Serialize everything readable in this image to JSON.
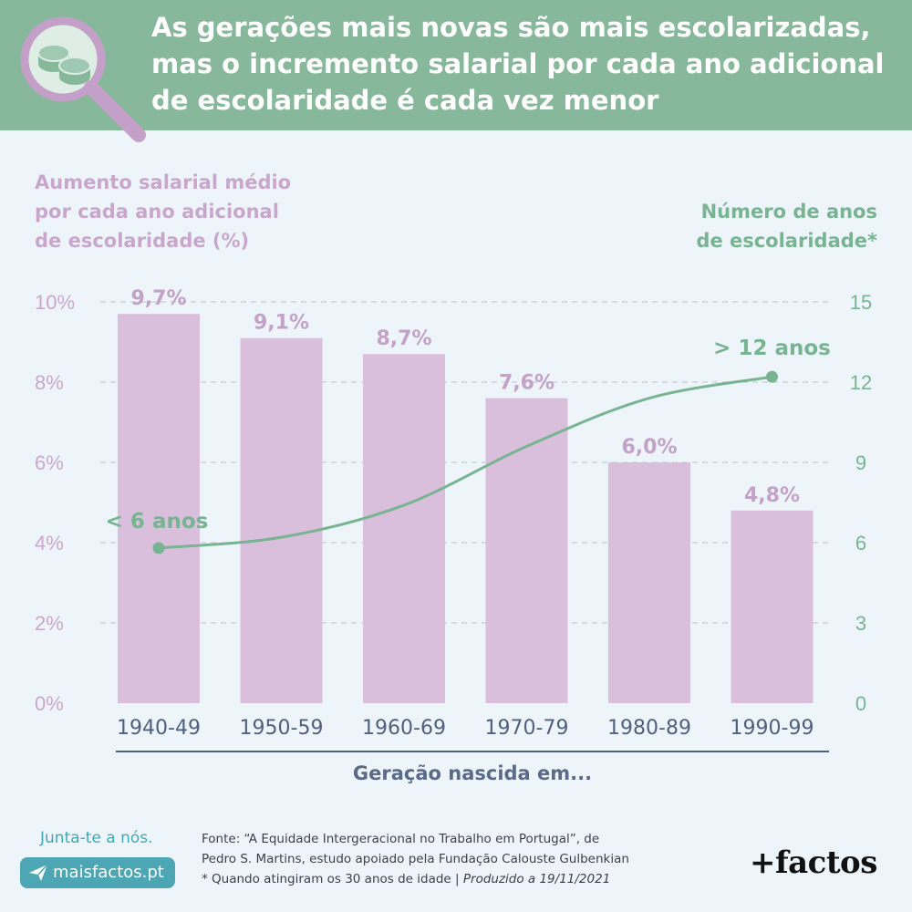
{
  "header": {
    "title_lines": [
      "As gerações mais novas são mais escolarizadas,",
      "mas o incremento salarial por cada ano adicional",
      "de escolaridade é cada vez menor"
    ],
    "icon": "magnifier-coins-icon",
    "color": "#88b89c"
  },
  "chart_data": {
    "type": "bar",
    "categories": [
      "1940-49",
      "1950-59",
      "1960-69",
      "1970-79",
      "1980-89",
      "1990-99"
    ],
    "series": [
      {
        "name": "Aumento salarial médio por cada ano adicional de escolaridade (%)",
        "type": "bar",
        "axis": "left",
        "values": [
          9.7,
          9.1,
          8.7,
          7.6,
          6.0,
          4.8
        ],
        "value_labels": [
          "9,7%",
          "9,1%",
          "8,7%",
          "7,6%",
          "6,0%",
          "4,8%"
        ],
        "color": "#d9bfdc"
      },
      {
        "name": "Número de anos de escolaridade*",
        "type": "line",
        "axis": "right",
        "values": [
          5.8,
          6.2,
          7.4,
          9.6,
          11.4,
          12.2
        ],
        "color": "#79b492",
        "annotations": [
          {
            "index": 0,
            "text": "< 6 anos"
          },
          {
            "index": 5,
            "text": "> 12 anos"
          }
        ]
      }
    ],
    "y_left": {
      "label_lines": [
        "Aumento salarial médio",
        "por cada ano adicional",
        "de escolaridade (%)"
      ],
      "ylim": [
        0,
        10
      ],
      "ticks": [
        0,
        2,
        4,
        6,
        8,
        10
      ],
      "tick_labels": [
        "0%",
        "2%",
        "4%",
        "6%",
        "8%",
        "10%"
      ],
      "color": "#c9a7cd"
    },
    "y_right": {
      "label_lines": [
        "Número de anos",
        "de escolaridade*"
      ],
      "ylim": [
        0,
        15
      ],
      "ticks": [
        0,
        3,
        6,
        9,
        12,
        15
      ],
      "tick_labels": [
        "0",
        "3",
        "6",
        "9",
        "12",
        "15"
      ],
      "color": "#79b492"
    },
    "xlabel": "Geração nascida em...",
    "grid": "dashed horizontal"
  },
  "footer": {
    "join_text": "Junta-te a nós.",
    "site_button": "maisfactos.pt",
    "source_lines": [
      "Fonte: “A Equidade Intergeracional no Trabalho em Portugal”, de",
      "Pedro S. Martins, estudo apoiado pela Fundação Calouste Gulbenkian"
    ],
    "note_text": "* Quando atingiram os 30 anos de idade | ",
    "produced_text": "Produzido a 19/11/2021",
    "logo": "+factos"
  }
}
